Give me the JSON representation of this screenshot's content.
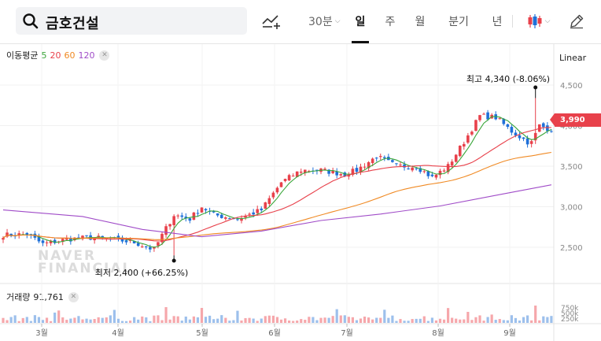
{
  "search": {
    "query": "금호건설",
    "icon": "search-icon"
  },
  "toolbar": {
    "indicator_icon": "add-indicator-icon",
    "interval": "30분",
    "periods": [
      "일",
      "주",
      "월",
      "분기",
      "년"
    ],
    "active_period": "일",
    "chart_type_icon": "candlestick-icon",
    "draw_icon": "pencil-icon"
  },
  "legend": {
    "ma_label": "이동평균",
    "ma_periods": [
      {
        "label": "5",
        "color": "#3aa63a"
      },
      {
        "label": "20",
        "color": "#e8414b"
      },
      {
        "label": "60",
        "color": "#f08a24"
      },
      {
        "label": "120",
        "color": "#a04cc8"
      }
    ],
    "volume_label": "거래량",
    "volume_value": "91,761"
  },
  "axis": {
    "scale_mode": "Linear",
    "price_ticks": [
      "4,500",
      "4,000",
      "3,500",
      "3,000",
      "2,500"
    ],
    "volume_ticks": [
      "750k",
      "500k",
      "250k"
    ],
    "month_labels": [
      "3월",
      "4월",
      "5월",
      "6월",
      "7월",
      "8월",
      "9월"
    ]
  },
  "annotations": {
    "high": "최고 4,340 (-8.06%)",
    "low": "최저 2,400 (+66.25%)",
    "current_price": "3,990"
  },
  "watermark": [
    "NAVER",
    "FINANCIAL"
  ],
  "colors": {
    "up": "#e8414b",
    "down": "#1f70d8",
    "accent": "#e8414b"
  },
  "chart_data": {
    "type": "candlestick",
    "ylim": [
      2300,
      4600
    ],
    "anchors": [
      [
        0,
        2650
      ],
      [
        6,
        2660
      ],
      [
        10,
        2540
      ],
      [
        16,
        2600
      ],
      [
        22,
        2620
      ],
      [
        27,
        2600
      ],
      [
        33,
        2560
      ],
      [
        38,
        2470
      ],
      [
        40,
        2650
      ],
      [
        43,
        2900
      ],
      [
        47,
        2850
      ],
      [
        50,
        3000
      ],
      [
        53,
        2900
      ],
      [
        59,
        2850
      ],
      [
        65,
        2960
      ],
      [
        70,
        3300
      ],
      [
        75,
        3450
      ],
      [
        80,
        3450
      ],
      [
        86,
        3400
      ],
      [
        89,
        3450
      ],
      [
        94,
        3620
      ],
      [
        99,
        3500
      ],
      [
        104,
        3500
      ],
      [
        108,
        3360
      ],
      [
        112,
        3500
      ],
      [
        116,
        3800
      ],
      [
        120,
        4120
      ],
      [
        124,
        4100
      ],
      [
        128,
        3930
      ],
      [
        132,
        3800
      ],
      [
        133,
        3790
      ],
      [
        135,
        4000
      ],
      [
        138,
        3950
      ]
    ],
    "last_index": 138,
    "high": {
      "index": 134,
      "value": 4340
    },
    "low": {
      "index": 43,
      "value": 2400
    },
    "ma120_points": [
      [
        0,
        2960
      ],
      [
        20,
        2880
      ],
      [
        35,
        2720
      ],
      [
        50,
        2630
      ],
      [
        65,
        2700
      ],
      [
        80,
        2830
      ],
      [
        95,
        2910
      ],
      [
        110,
        3010
      ],
      [
        125,
        3150
      ],
      [
        138,
        3270
      ]
    ]
  }
}
